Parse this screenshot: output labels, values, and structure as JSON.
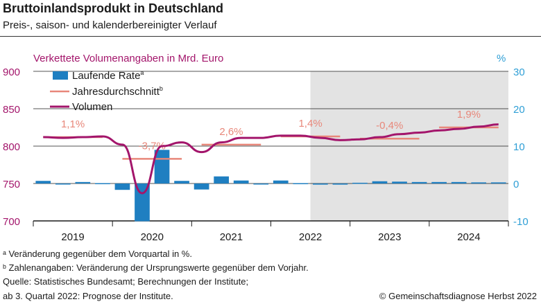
{
  "title": "Bruttoinlandsprodukt in Deutschland",
  "subtitle": "Preis-, saison- und kalenderbereinigter Verlauf",
  "footnotes": {
    "a": "ᵃ Veränderung gegenüber dem Vorquartal in %.",
    "b": "ᵇ Zahlenangaben: Veränderung der Ursprungswerte gegenüber dem Vorjahr.",
    "source": "Quelle: Statistisches Bundesamt; Berechnungen der Institute;",
    "forecast": "ab 3. Quartal 2022: Prognose der Institute."
  },
  "copyright": "© Gemeinschaftsdiagnose Herbst 2022",
  "colors": {
    "bars": "#1f7fc1",
    "average": "#e8877a",
    "volume": "#a3156b",
    "left_axis": "#a3156b",
    "right_axis": "#2f9fd6",
    "forecast_shade": "#e3e3e3"
  },
  "chart_data": {
    "type": "bar+line",
    "left_axis_title": "Verkettete Volumenangaben in Mrd. Euro",
    "right_axis_title": "%",
    "left_ylim": [
      700,
      900
    ],
    "right_ylim": [
      -10,
      30
    ],
    "left_ticks": [
      "700",
      "750",
      "800",
      "850",
      "900"
    ],
    "right_ticks": [
      "-10",
      "0",
      "10",
      "20",
      "30"
    ],
    "years": [
      "2019",
      "2020",
      "2021",
      "2022",
      "2023",
      "2024"
    ],
    "forecast_start_quarter_index": 14,
    "legend": {
      "bars": "Laufende Rate",
      "bars_sup": "a",
      "average": "Jahresdurchschnitt",
      "average_sup": "b",
      "volume": "Volumen"
    },
    "quarters": [
      "2019 Q1",
      "2019 Q2",
      "2019 Q3",
      "2019 Q4",
      "2020 Q1",
      "2020 Q2",
      "2020 Q3",
      "2020 Q4",
      "2021 Q1",
      "2021 Q2",
      "2021 Q3",
      "2021 Q4",
      "2022 Q1",
      "2022 Q2",
      "2022 Q3",
      "2022 Q4",
      "2023 Q1",
      "2023 Q2",
      "2023 Q3",
      "2023 Q4",
      "2024 Q1",
      "2024 Q2",
      "2024 Q3",
      "2024 Q4"
    ],
    "series": [
      {
        "name": "Laufende Rate",
        "kind": "bar",
        "axis": "right",
        "values": [
          0.7,
          -0.2,
          0.4,
          0.1,
          -1.7,
          -10.1,
          9.0,
          0.7,
          -1.6,
          1.9,
          0.8,
          0.0,
          0.8,
          0.1,
          -0.3,
          -0.3,
          0.2,
          0.6,
          0.5,
          0.4,
          0.4,
          0.4,
          0.3,
          0.3
        ]
      },
      {
        "name": "Volumen",
        "kind": "line",
        "axis": "left",
        "values": [
          812,
          811,
          812,
          813,
          802,
          737,
          800,
          805,
          792,
          805,
          811,
          811,
          814,
          814,
          811,
          808,
          809,
          812,
          816,
          818,
          821,
          823,
          826,
          829
        ]
      }
    ],
    "annual_averages": [
      {
        "year": "2019",
        "label": "1,1%",
        "level": 812
      },
      {
        "year": "2020",
        "label": "-3,7%",
        "level": 783
      },
      {
        "year": "2021",
        "label": "2,6%",
        "level": 802
      },
      {
        "year": "2022",
        "label": "1,4%",
        "level": 813
      },
      {
        "year": "2023",
        "label": "-0,4%",
        "level": 810
      },
      {
        "year": "2024",
        "label": "1,9%",
        "level": 825
      }
    ]
  }
}
